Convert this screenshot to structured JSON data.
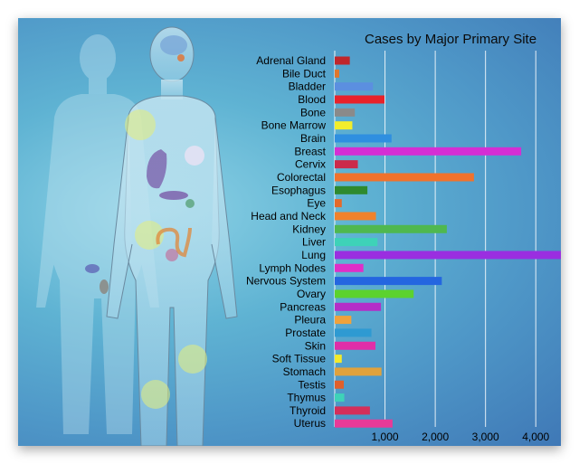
{
  "chart_data": {
    "type": "bar",
    "orientation": "horizontal",
    "title": "Cases by Major Primary Site",
    "xlabel": "",
    "ylabel": "",
    "xlim": [
      0,
      4500
    ],
    "xticks": [
      1000,
      2000,
      3000,
      4000
    ],
    "xtick_labels": [
      "1,000",
      "2,000",
      "3,000",
      "4,000"
    ],
    "grid": "vertical",
    "categories": [
      "Adrenal Gland",
      "Bile Duct",
      "Bladder",
      "Blood",
      "Bone",
      "Bone Marrow",
      "Brain",
      "Breast",
      "Cervix",
      "Colorectal",
      "Esophagus",
      "Eye",
      "Head and Neck",
      "Kidney",
      "Liver",
      "Lung",
      "Lymph Nodes",
      "Nervous System",
      "Ovary",
      "Pancreas",
      "Pleura",
      "Prostate",
      "Skin",
      "Soft Tissue",
      "Stomach",
      "Testis",
      "Thymus",
      "Thyroid",
      "Uterus"
    ],
    "values": [
      300,
      90,
      760,
      990,
      400,
      350,
      1130,
      3710,
      460,
      2770,
      650,
      140,
      820,
      2230,
      850,
      4650,
      570,
      2130,
      1570,
      920,
      330,
      730,
      810,
      140,
      930,
      180,
      190,
      700,
      1150
    ],
    "colors": [
      "#c0262b",
      "#e0772d",
      "#5b8fe0",
      "#e8222a",
      "#8a8a8a",
      "#f2ee2c",
      "#2f8fe0",
      "#d42ed4",
      "#cc2a4a",
      "#f0722c",
      "#2e8a2e",
      "#e56a2a",
      "#f0822c",
      "#4fb84f",
      "#3ed2b8",
      "#9a2ee0",
      "#e02ec8",
      "#2466e0",
      "#5cd22e",
      "#b42ec8",
      "#f0a23c",
      "#2e9ad2",
      "#e02ea8",
      "#f2ea2c",
      "#e0a23c",
      "#e0602c",
      "#3ed2b8",
      "#d42e5a",
      "#e83a98"
    ]
  }
}
